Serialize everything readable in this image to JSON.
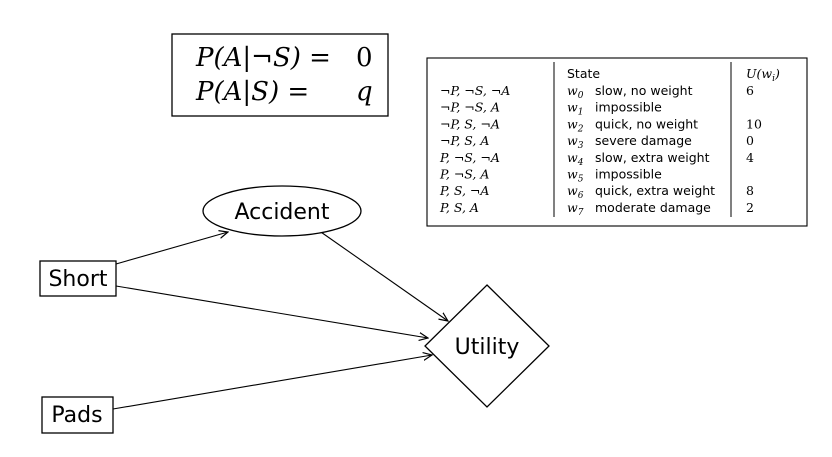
{
  "probability_box": {
    "rows": [
      {
        "lhs": "P(A|¬S) =",
        "rhs": "0"
      },
      {
        "lhs": "P(A|S) =",
        "rhs": "q"
      }
    ]
  },
  "nodes": {
    "accident": "Accident",
    "short": "Short",
    "pads": "Pads",
    "utility": "Utility"
  },
  "table": {
    "headers": {
      "state": "State",
      "utility": "U(w_i)"
    },
    "rows": [
      {
        "cond": "¬P, ¬S, ¬A",
        "world": "w",
        "sub": "0",
        "desc": "slow, no weight",
        "u": "6"
      },
      {
        "cond": "¬P, ¬S, A",
        "world": "w",
        "sub": "1",
        "desc": "impossible",
        "u": ""
      },
      {
        "cond": "¬P, S, ¬A",
        "world": "w",
        "sub": "2",
        "desc": "quick, no weight",
        "u": "10"
      },
      {
        "cond": "¬P, S, A",
        "world": "w",
        "sub": "3",
        "desc": "severe damage",
        "u": "0"
      },
      {
        "cond": "P, ¬S, ¬A",
        "world": "w",
        "sub": "4",
        "desc": "slow, extra weight",
        "u": "4"
      },
      {
        "cond": "P, ¬S, A",
        "world": "w",
        "sub": "5",
        "desc": "impossible",
        "u": ""
      },
      {
        "cond": "P, S, ¬A",
        "world": "w",
        "sub": "6",
        "desc": "quick, extra weight",
        "u": "8"
      },
      {
        "cond": "P, S, A",
        "world": "w",
        "sub": "7",
        "desc": "moderate damage",
        "u": "2"
      }
    ]
  }
}
